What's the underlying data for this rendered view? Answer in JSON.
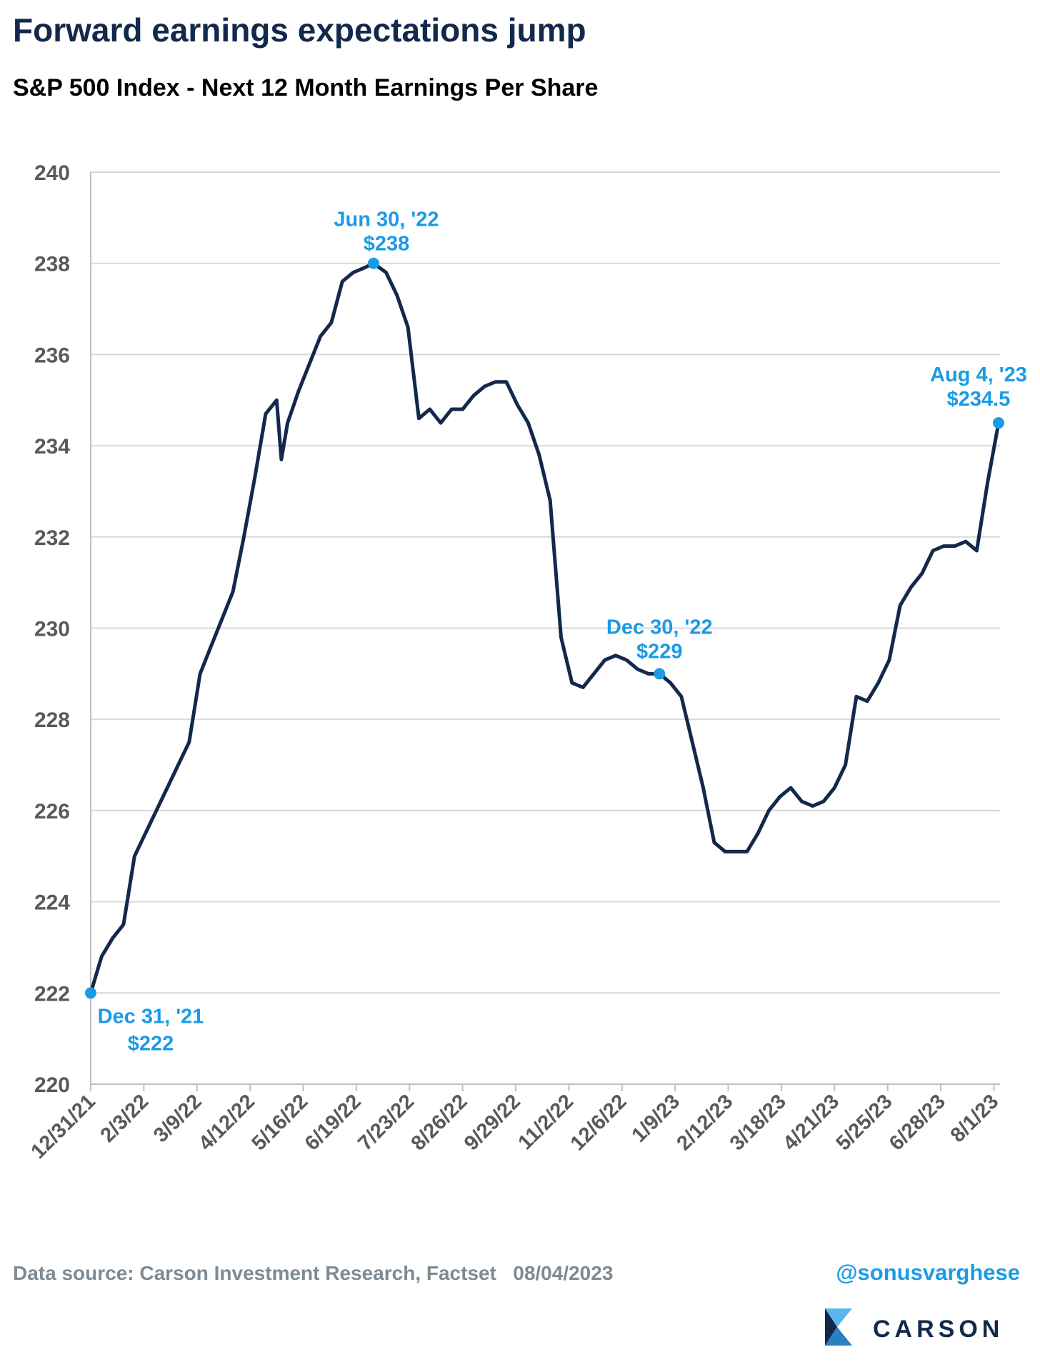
{
  "chart_data": {
    "type": "line",
    "title": "Forward earnings expectations jump",
    "subtitle": "S&P 500 Index - Next 12 Month Earnings Per Share",
    "x": [
      "12/31/21",
      "1/7/22",
      "1/14/22",
      "1/21/22",
      "1/28/22",
      "2/4/22",
      "2/11/22",
      "2/18/22",
      "2/25/22",
      "3/4/22",
      "3/11/22",
      "3/18/22",
      "3/25/22",
      "4/1/22",
      "4/8/22",
      "4/15/22",
      "4/22/22",
      "4/29/22",
      "5/2/22",
      "5/6/22",
      "5/13/22",
      "5/20/22",
      "5/27/22",
      "6/3/22",
      "6/10/22",
      "6/17/22",
      "6/24/22",
      "6/30/22",
      "7/8/22",
      "7/15/22",
      "7/22/22",
      "7/29/22",
      "8/5/22",
      "8/12/22",
      "8/19/22",
      "8/26/22",
      "9/2/22",
      "9/9/22",
      "9/16/22",
      "9/23/22",
      "9/30/22",
      "10/7/22",
      "10/14/22",
      "10/21/22",
      "10/28/22",
      "11/4/22",
      "11/11/22",
      "11/18/22",
      "11/25/22",
      "12/2/22",
      "12/9/22",
      "12/16/22",
      "12/23/22",
      "12/30/22",
      "1/6/23",
      "1/13/23",
      "1/20/23",
      "1/27/23",
      "2/3/23",
      "2/10/23",
      "2/17/23",
      "2/24/23",
      "3/3/23",
      "3/10/23",
      "3/17/23",
      "3/24/23",
      "3/31/23",
      "4/7/23",
      "4/14/23",
      "4/21/23",
      "4/28/23",
      "5/5/23",
      "5/12/23",
      "5/19/23",
      "5/26/23",
      "6/2/23",
      "6/9/23",
      "6/16/23",
      "6/23/23",
      "6/30/23",
      "7/7/23",
      "7/14/23",
      "7/21/23",
      "7/28/23",
      "8/4/23"
    ],
    "series": [
      {
        "name": "Next 12 Month EPS",
        "color": "#13294b",
        "values": [
          222,
          222.8,
          223.2,
          223.5,
          225.0,
          225.5,
          226.0,
          226.5,
          227.0,
          227.5,
          229.0,
          229.6,
          230.2,
          230.8,
          232.0,
          233.3,
          234.7,
          235.0,
          233.7,
          234.5,
          235.2,
          235.8,
          236.4,
          236.7,
          237.6,
          237.8,
          237.9,
          238,
          237.8,
          237.3,
          236.6,
          234.6,
          234.8,
          234.5,
          234.8,
          234.8,
          235.1,
          235.3,
          235.4,
          235.4,
          234.9,
          234.5,
          233.8,
          232.8,
          229.8,
          228.8,
          228.7,
          229.0,
          229.3,
          229.4,
          229.3,
          229.1,
          229.0,
          229,
          228.8,
          228.5,
          227.5,
          226.5,
          225.3,
          225.1,
          225.1,
          225.1,
          225.5,
          226.0,
          226.3,
          226.5,
          226.2,
          226.1,
          226.2,
          226.5,
          227.0,
          228.5,
          228.4,
          228.8,
          229.3,
          230.5,
          230.9,
          231.2,
          231.7,
          231.8,
          231.8,
          231.9,
          231.7,
          233.2,
          234.5
        ]
      }
    ],
    "ylim": [
      220,
      240
    ],
    "yticks": [
      220,
      222,
      224,
      226,
      228,
      230,
      232,
      234,
      236,
      238,
      240
    ],
    "xticks": [
      "12/31/21",
      "2/3/22",
      "3/9/22",
      "4/12/22",
      "5/16/22",
      "6/19/22",
      "7/23/22",
      "8/26/22",
      "9/29/22",
      "11/2/22",
      "12/6/22",
      "1/9/23",
      "2/12/23",
      "3/18/23",
      "4/21/23",
      "5/25/23",
      "6/28/23",
      "8/1/23"
    ],
    "grid": true,
    "annotations": [
      {
        "x": "12/31/21",
        "y": 222,
        "date_label": "Dec 31, '21",
        "value_label": "$222",
        "color": "#1a9be6"
      },
      {
        "x": "6/30/22",
        "y": 238,
        "date_label": "Jun 30, '22",
        "value_label": "$238",
        "color": "#1a9be6"
      },
      {
        "x": "12/30/22",
        "y": 229,
        "date_label": "Dec 30, '22",
        "value_label": "$229",
        "color": "#1a9be6"
      },
      {
        "x": "8/4/23",
        "y": 234.5,
        "date_label": "Aug 4, '23",
        "value_label": "$234.5",
        "color": "#1a9be6"
      }
    ],
    "source": "Data source: Carson Investment Research, Factset   08/04/2023",
    "handle": "@sonusvarghese",
    "logo": "CARSON"
  }
}
